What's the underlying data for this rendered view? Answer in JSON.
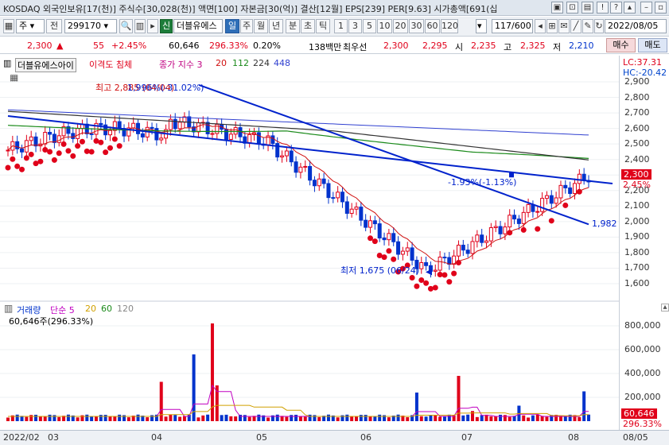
{
  "window": {
    "title": "KOSDAQ 외국인보유[17(천)] 주식수[30,028(천)] 액면[100] 자본금[30(억)] 결산[12월] EPS[239] PER[9.63] 시가총액[691(십"
  },
  "toolbar": {
    "market_label": "주",
    "prev_label": "전",
    "code": "299170",
    "search_icon": "search-icon",
    "new_label": "신",
    "stock_name": "더블유에스",
    "periods": [
      "일",
      "주",
      "월",
      "년",
      "분",
      "초",
      "틱"
    ],
    "active_period": "일",
    "intervals": [
      "1",
      "3",
      "5",
      "10",
      "20",
      "30",
      "60",
      "120"
    ],
    "count": "117/600",
    "date": "2022/08/05"
  },
  "quote": {
    "price": "2,300",
    "change": "55",
    "change_pct": "+2.45%",
    "volume": "60,646",
    "volume_pct": "296.33%",
    "turnover": "0.20%",
    "amount": "138백만",
    "hoga_label": "최우선",
    "ask": "2,300",
    "bid": "2,295",
    "open_label": "시",
    "open": "2,235",
    "high_label": "고",
    "high": "2,325",
    "low_label": "저",
    "low": "2,210",
    "buy_label": "매수",
    "sell_label": "매도"
  },
  "legend": {
    "name": "더블유에스아이",
    "disparity": "이격도 침체",
    "ma_label": "종가 지수 3",
    "ma_periods": [
      "20",
      "112",
      "224",
      "448"
    ],
    "lc": "LC:37.31",
    "hc": "HC:-20.42"
  },
  "annotations": {
    "high": "최고 2,885 (04/04)",
    "high_overlay": "1,996%(-31.02%)",
    "low": "최저 1,675 (06/24)",
    "trend_pct": "-1.93%(-1.13%)",
    "trend_end": "1,982",
    "last_price": "2,300",
    "last_pct": "2.45%"
  },
  "price_axis": [
    "2,900",
    "2,800",
    "2,700",
    "2,600",
    "2,500",
    "2,400",
    "2,300",
    "2,200",
    "2,100",
    "2,000",
    "1,900",
    "1,800",
    "1,700",
    "1,600"
  ],
  "volume_panel": {
    "legend_label": "거래량",
    "ma_label": "단순 5",
    "ma_periods": [
      "20",
      "60",
      "120"
    ],
    "current": "60,646주(296.33%)",
    "axis": [
      "800,000",
      "600,000",
      "400,000",
      "200,000"
    ],
    "last_tag": "60,646",
    "last_pct_tag": "296.33%"
  },
  "x_axis": [
    "2022/02",
    "03",
    "04",
    "05",
    "06",
    "07",
    "08",
    "08/05"
  ],
  "colors": {
    "up": "#e0001a",
    "down": "#0033cc",
    "trend": "#0022cc",
    "ma20": "#d01010",
    "ma112": "#1a8a1a",
    "ma224": "#333333",
    "ma448": "#3040d0"
  }
}
